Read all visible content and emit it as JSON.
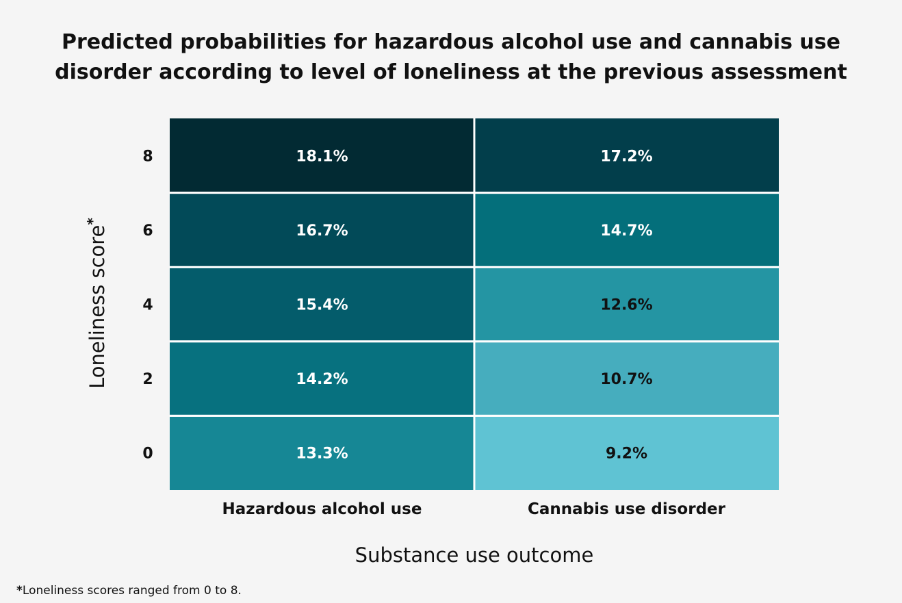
{
  "chart_data": {
    "type": "heatmap",
    "title_lines": [
      "Predicted probabilities for hazardous alcohol use and cannabis use",
      "disorder according to level of loneliness at the previous assessment"
    ],
    "xlabel": "Substance use outcome",
    "ylabel": "Loneliness score",
    "ylabel_marker": "*",
    "columns": [
      "Hazardous alcohol use",
      "Cannabis use disorder"
    ],
    "rows": [
      "8",
      "6",
      "4",
      "2",
      "0"
    ],
    "values": [
      [
        18.1,
        17.2
      ],
      [
        16.7,
        14.7
      ],
      [
        15.4,
        12.6
      ],
      [
        14.2,
        10.7
      ],
      [
        13.3,
        9.2
      ]
    ],
    "labels": [
      [
        "18.1%",
        "17.2%"
      ],
      [
        "16.7%",
        "14.7%"
      ],
      [
        "15.4%",
        "12.6%"
      ],
      [
        "14.2%",
        "10.7%"
      ],
      [
        "13.3%",
        "9.2%"
      ]
    ],
    "colors": [
      [
        "#022a33",
        "#023e4b"
      ],
      [
        "#024a58",
        "#046f7b"
      ],
      [
        "#045c6b",
        "#2495a3"
      ],
      [
        "#07717f",
        "#46adbe"
      ],
      [
        "#168795",
        "#5fc3d3"
      ]
    ],
    "text_colors": [
      [
        "#ffffff",
        "#ffffff"
      ],
      [
        "#ffffff",
        "#ffffff"
      ],
      [
        "#ffffff",
        "#111111"
      ],
      [
        "#ffffff",
        "#111111"
      ],
      [
        "#ffffff",
        "#111111"
      ]
    ]
  },
  "footnote": {
    "marker": "*",
    "text": "Loneliness scores ranged from 0 to 8."
  }
}
